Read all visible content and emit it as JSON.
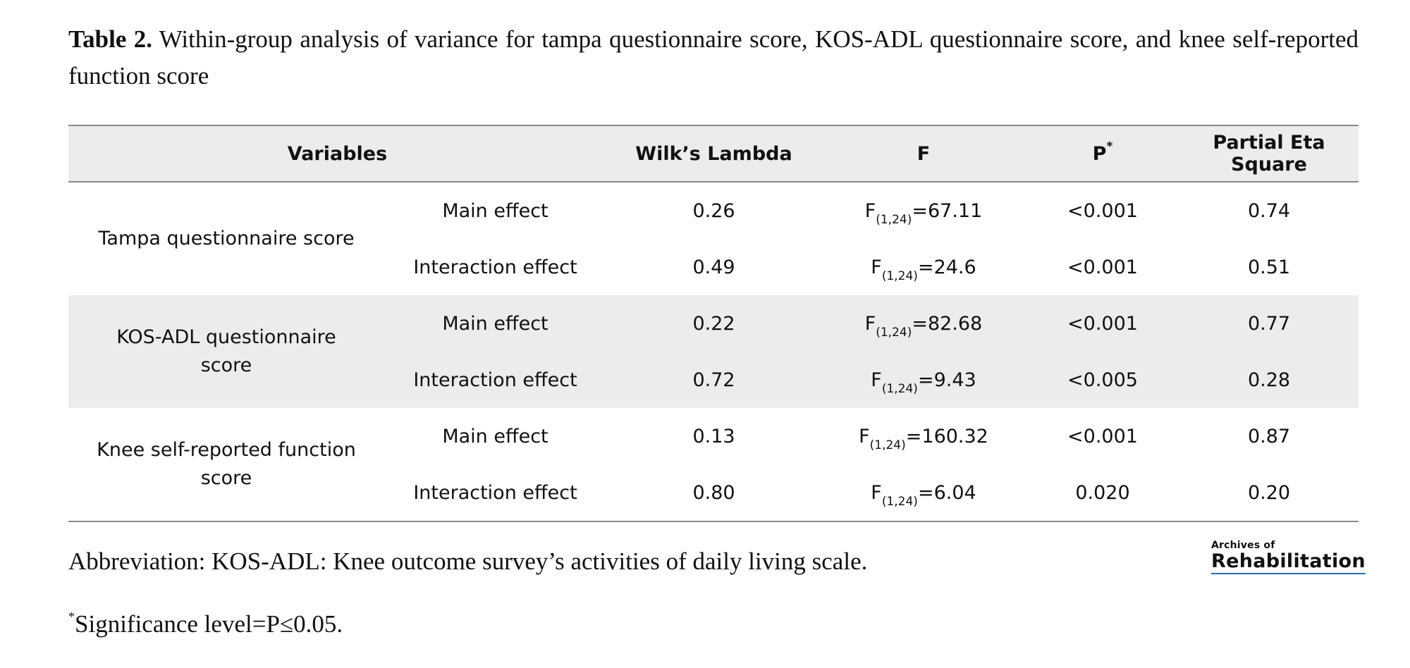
{
  "caption": {
    "label": "Table 2.",
    "text": "Within-group analysis of variance for tampa questionnaire score, KOS-ADL questionnaire score, and knee self-reported function score"
  },
  "table": {
    "headers": {
      "variables": "Variables",
      "wilks": "Wilk’s Lambda",
      "f": "F",
      "p": "P",
      "p_mark": "*",
      "eta": "Partial Eta Square"
    },
    "groups": [
      {
        "name": "Tampa questionnaire score",
        "rows": [
          {
            "effect": "Main effect",
            "wilks": "0.26",
            "f_base": "F",
            "f_sub": "(1,24)",
            "f_val": "=67.11",
            "p": "<0.001",
            "eta": "0.74"
          },
          {
            "effect": "Interaction effect",
            "wilks": "0.49",
            "f_base": "F",
            "f_sub": "(1,24)",
            "f_val": "=24.6",
            "p": "<0.001",
            "eta": "0.51"
          }
        ]
      },
      {
        "name": "KOS-ADL questionnaire score",
        "rows": [
          {
            "effect": "Main effect",
            "wilks": "0.22",
            "f_base": "F",
            "f_sub": "(1,24)",
            "f_val": "=82.68",
            "p": "<0.001",
            "eta": "0.77"
          },
          {
            "effect": "Interaction effect",
            "wilks": "0.72",
            "f_base": "F",
            "f_sub": "(1,24)",
            "f_val": "=9.43",
            "p": "<0.005",
            "eta": "0.28"
          }
        ]
      },
      {
        "name": "Knee self-reported function score",
        "rows": [
          {
            "effect": "Main effect",
            "wilks": "0.13",
            "f_base": "F",
            "f_sub": "(1,24)",
            "f_val": "=160.32",
            "p": "<0.001",
            "eta": "0.87"
          },
          {
            "effect": "Interaction effect",
            "wilks": "0.80",
            "f_base": "F",
            "f_sub": "(1,24)",
            "f_val": "=6.04",
            "p": "0.020",
            "eta": "0.20"
          }
        ]
      }
    ]
  },
  "footnotes": {
    "abbreviation": "Abbreviation: KOS-ADL: Knee outcome survey’s activities of daily living scale.",
    "significance_mark": "*",
    "significance": "Significance level=P≤0.05."
  },
  "logo": {
    "top": "Archives of",
    "main": "Rehabilitation",
    "accent_color": "#2f6db5"
  },
  "colors": {
    "header_bg": "#ececec",
    "shade_bg": "#ececec",
    "rule": "#8a8a8a"
  }
}
